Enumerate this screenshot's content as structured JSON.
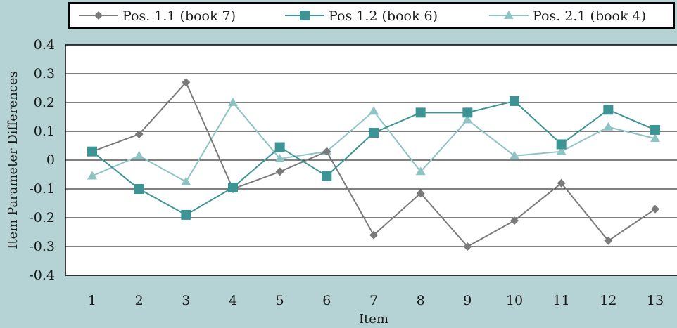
{
  "chart_data": {
    "type": "line",
    "title": "",
    "xlabel": "Item",
    "ylabel": "Item Parameter Differences",
    "categories": [
      "1",
      "2",
      "3",
      "4",
      "5",
      "6",
      "7",
      "8",
      "9",
      "10",
      "11",
      "12",
      "13"
    ],
    "ylim": [
      -0.4,
      0.4
    ],
    "yticks": [
      "0.4",
      "0.3",
      "0.2",
      "0.1",
      "0",
      "-0.1",
      "-0.2",
      "-0.3",
      "-0.4"
    ],
    "grid": "horizontal",
    "legend_position": "top",
    "background_color": "#b5d3d5",
    "plot_background": "#ffffff",
    "series": [
      {
        "name": "Pos. 1.1 (book 7)",
        "color": "#7a7a7a",
        "marker": "diamond",
        "values": [
          0.03,
          0.09,
          0.27,
          -0.1,
          -0.04,
          0.03,
          -0.26,
          -0.115,
          -0.3,
          -0.21,
          -0.08,
          -0.28,
          -0.17
        ]
      },
      {
        "name": "Pos 1.2 (book 6)",
        "color": "#3d9494",
        "marker": "square",
        "values": [
          0.03,
          -0.1,
          -0.19,
          -0.095,
          0.045,
          -0.055,
          0.095,
          0.165,
          0.165,
          0.205,
          0.055,
          0.175,
          0.105
        ]
      },
      {
        "name": "Pos. 2.1 (book 4)",
        "color": "#8fc4c4",
        "marker": "triangle",
        "values": [
          -0.055,
          0.015,
          -0.075,
          0.2,
          0.005,
          0.03,
          0.17,
          -0.04,
          0.14,
          0.015,
          0.03,
          0.115,
          0.075
        ]
      }
    ]
  }
}
